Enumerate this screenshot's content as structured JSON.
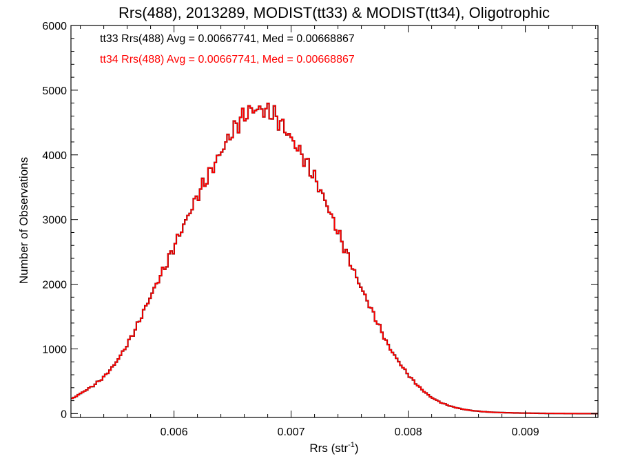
{
  "chart_data": {
    "type": "histogram-step",
    "title": "Rrs(488), 2013289, MODIST(tt33) & MODIST(tt34), Oligotrophic",
    "xlabel": "Rrs (str",
    "xlabel_sup": "-1",
    "xlabel_close": ")",
    "ylabel": "Number of Observations",
    "xlim": [
      0.00512,
      0.00962
    ],
    "ylim": [
      -60,
      6000
    ],
    "xticks": [
      {
        "value": 0.006,
        "label": "0.006"
      },
      {
        "value": 0.007,
        "label": "0.007"
      },
      {
        "value": 0.008,
        "label": "0.008"
      },
      {
        "value": 0.009,
        "label": "0.009"
      }
    ],
    "yticks": [
      {
        "value": 0,
        "label": "0"
      },
      {
        "value": 1000,
        "label": "1000"
      },
      {
        "value": 2000,
        "label": "2000"
      },
      {
        "value": 3000,
        "label": "3000"
      },
      {
        "value": 4000,
        "label": "4000"
      },
      {
        "value": 5000,
        "label": "5000"
      },
      {
        "value": 6000,
        "label": "6000"
      }
    ],
    "annotations": [
      {
        "text": "tt33 Rrs(488) Avg = 0.00667741, Med = 0.00668867",
        "color": "#000000"
      },
      {
        "text": "tt34 Rrs(488) Avg = 0.00667741, Med = 0.00668867",
        "color": "#ff0000"
      }
    ],
    "bin_width": 1.8e-05,
    "series": [
      {
        "name": "tt33",
        "color": "#000000",
        "x": [
          0.00512,
          0.00521,
          0.0053,
          0.00539,
          0.00548,
          0.00557,
          0.00566,
          0.00575,
          0.00584,
          0.00593,
          0.00602,
          0.00611,
          0.0062,
          0.00629,
          0.00638,
          0.00647,
          0.00656,
          0.00665,
          0.00674,
          0.00683,
          0.00692,
          0.00701,
          0.0071,
          0.00719,
          0.00728,
          0.00737,
          0.00746,
          0.00755,
          0.00764,
          0.00773,
          0.00782,
          0.00791,
          0.008,
          0.00809,
          0.00818,
          0.00827,
          0.00836,
          0.00845,
          0.00854,
          0.00863,
          0.00872,
          0.00881,
          0.0089,
          0.00899,
          0.00908,
          0.00917,
          0.00926,
          0.00935,
          0.00944,
          0.00953,
          0.00962
        ],
        "y": [
          230,
          330,
          430,
          560,
          750,
          1000,
          1300,
          1650,
          2000,
          2330,
          2700,
          3050,
          3400,
          3700,
          4000,
          4300,
          4550,
          4700,
          4700,
          4650,
          4450,
          4200,
          3950,
          3650,
          3300,
          2900,
          2500,
          2100,
          1750,
          1400,
          1050,
          800,
          580,
          400,
          260,
          170,
          110,
          70,
          45,
          30,
          20,
          15,
          10,
          8,
          5,
          3,
          2,
          1,
          0,
          0,
          0
        ]
      },
      {
        "name": "tt34",
        "color": "#ff0000",
        "x": [
          0.00512,
          0.00521,
          0.0053,
          0.00539,
          0.00548,
          0.00557,
          0.00566,
          0.00575,
          0.00584,
          0.00593,
          0.00602,
          0.00611,
          0.0062,
          0.00629,
          0.00638,
          0.00647,
          0.00656,
          0.00665,
          0.00674,
          0.00683,
          0.00692,
          0.00701,
          0.0071,
          0.00719,
          0.00728,
          0.00737,
          0.00746,
          0.00755,
          0.00764,
          0.00773,
          0.00782,
          0.00791,
          0.008,
          0.00809,
          0.00818,
          0.00827,
          0.00836,
          0.00845,
          0.00854,
          0.00863,
          0.00872,
          0.00881,
          0.0089,
          0.00899,
          0.00908,
          0.00917,
          0.00926,
          0.00935,
          0.00944,
          0.00953,
          0.00962
        ],
        "y": [
          230,
          330,
          430,
          560,
          750,
          1000,
          1300,
          1650,
          2000,
          2330,
          2700,
          3050,
          3400,
          3700,
          4000,
          4300,
          4550,
          4700,
          4700,
          4650,
          4450,
          4200,
          3950,
          3650,
          3300,
          2900,
          2500,
          2100,
          1750,
          1400,
          1050,
          800,
          580,
          400,
          260,
          170,
          110,
          70,
          45,
          30,
          20,
          15,
          10,
          8,
          5,
          3,
          2,
          1,
          0,
          0,
          0
        ]
      }
    ]
  }
}
